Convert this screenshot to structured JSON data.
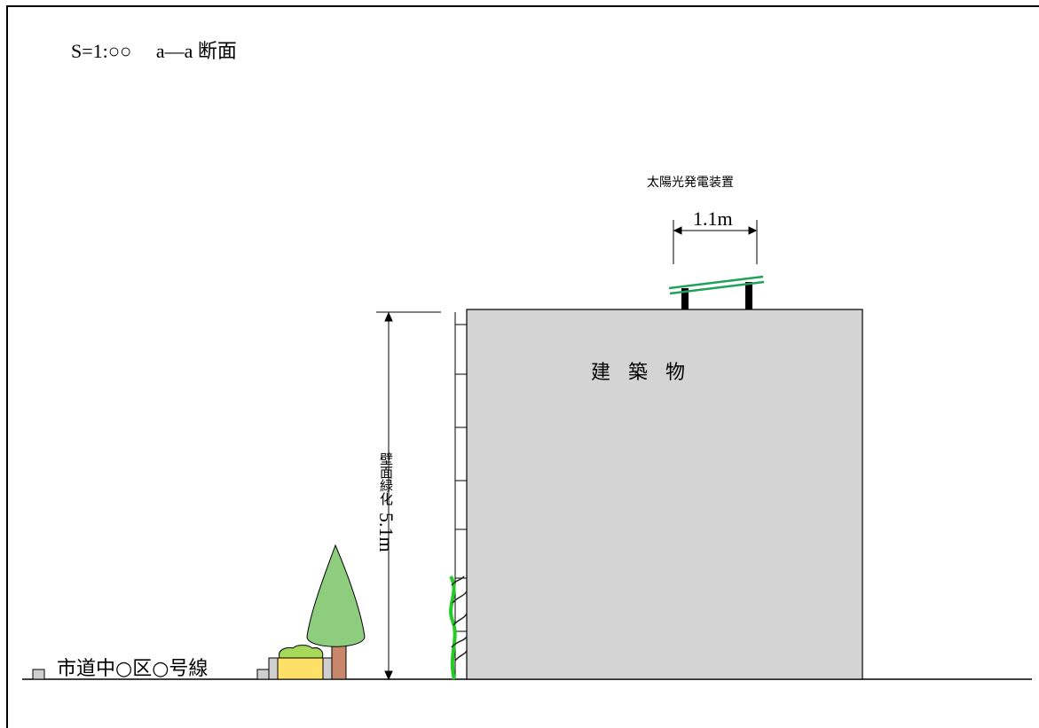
{
  "title": "S=1:○○　 a―a 断面",
  "solar_panel": {
    "label": "太陽光発電装置",
    "width_dimension": "1.1m"
  },
  "building": {
    "label": "建築物"
  },
  "wall_greening": {
    "label": "壁面緑化",
    "height_dimension": "5.1m"
  },
  "road": {
    "label": "市道中○区○号線"
  },
  "colors": {
    "building_fill": "#d4d4d4",
    "tree_foliage": "#8dcd7d",
    "tree_trunk": "#c8876a",
    "planter": "#ffe066",
    "shrub": "#a6d85a",
    "vine": "#22cc22",
    "solar_panel": "#1fa35a"
  }
}
